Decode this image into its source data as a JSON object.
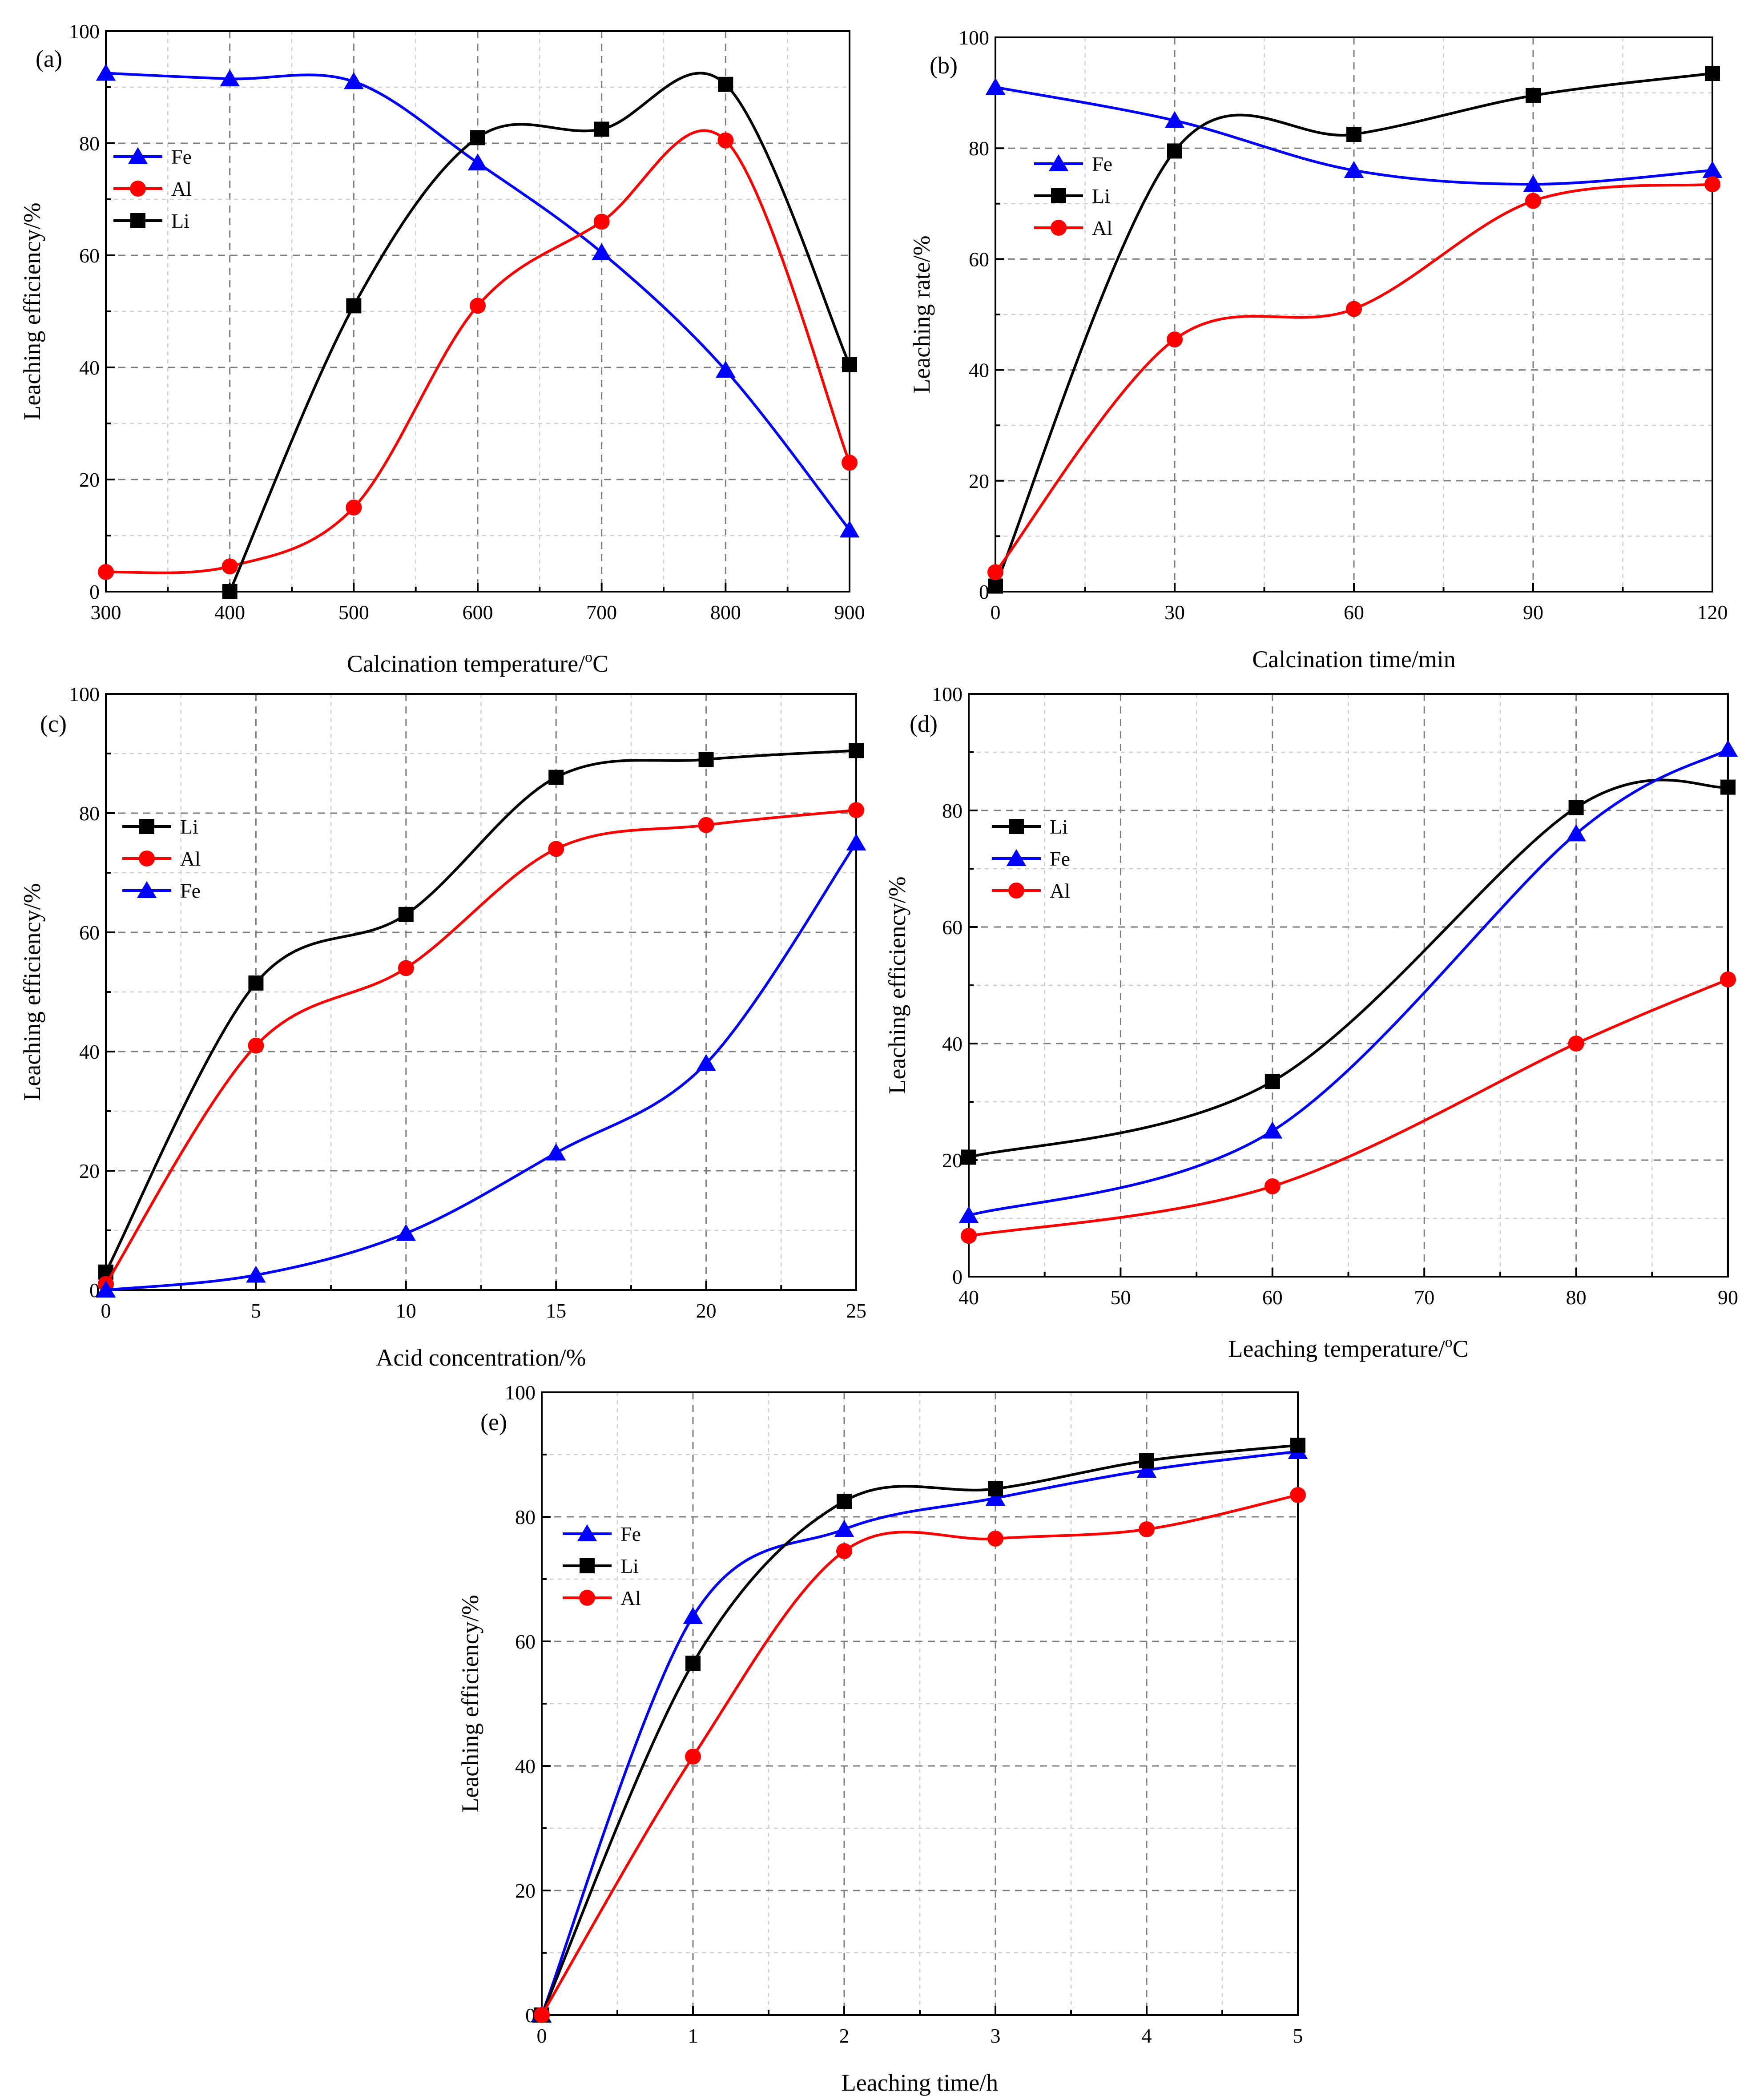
{
  "chart_data": [
    {
      "type": "line",
      "panel_label": "(a)",
      "xlabel": "Calcination temperature/",
      "xlabel_unit": "oC",
      "ylabel": "Leaching efficiency/%",
      "x": [
        300,
        400,
        500,
        600,
        700,
        800,
        900
      ],
      "xlim": [
        300,
        900
      ],
      "ylim": [
        0,
        100
      ],
      "xticks": [
        300,
        400,
        500,
        600,
        700,
        800,
        900
      ],
      "yticks": [
        0,
        20,
        40,
        60,
        80,
        100
      ],
      "legend_position": "upper-left",
      "grid": true,
      "series": [
        {
          "name": "Fe",
          "color": "#0000ff",
          "marker": "triangle",
          "x": [
            300,
            400,
            500,
            600,
            700,
            800,
            900
          ],
          "values": [
            92.5,
            91.5,
            91,
            76.5,
            60.5,
            39.5,
            11
          ]
        },
        {
          "name": "Al",
          "color": "#ff0000",
          "marker": "circle",
          "x": [
            300,
            400,
            500,
            600,
            700,
            800,
            900
          ],
          "values": [
            3.5,
            4.5,
            15,
            51,
            66,
            80.5,
            23
          ]
        },
        {
          "name": "Li",
          "color": "#000000",
          "marker": "square",
          "x": [
            400,
            500,
            600,
            700,
            800,
            900
          ],
          "values": [
            0,
            51,
            81,
            82.5,
            90.5,
            40.5
          ]
        }
      ]
    },
    {
      "type": "line",
      "panel_label": "(b)",
      "xlabel": "Calcination time/min",
      "ylabel": "Leaching rate/%",
      "x": [
        0,
        30,
        60,
        90,
        120
      ],
      "xlim": [
        0,
        120
      ],
      "ylim": [
        0,
        100
      ],
      "xticks": [
        0,
        30,
        60,
        90,
        120
      ],
      "yticks": [
        0,
        20,
        40,
        60,
        80,
        100
      ],
      "legend_position": "upper-left",
      "grid": true,
      "series": [
        {
          "name": "Fe",
          "color": "#0000ff",
          "marker": "triangle",
          "x": [
            0,
            30,
            60,
            90,
            120
          ],
          "values": [
            91,
            85,
            76,
            73.5,
            76
          ]
        },
        {
          "name": "Li",
          "color": "#000000",
          "marker": "square",
          "x": [
            0,
            30,
            60,
            90,
            120
          ],
          "values": [
            1,
            79.5,
            82.5,
            89.5,
            93.5
          ]
        },
        {
          "name": "Al",
          "color": "#ff0000",
          "marker": "circle",
          "x": [
            0,
            30,
            60,
            90,
            120
          ],
          "values": [
            3.5,
            45.5,
            51,
            70.5,
            73.5
          ]
        }
      ]
    },
    {
      "type": "line",
      "panel_label": "(c)",
      "xlabel": "Acid concentration/%",
      "ylabel": "Leaching efficiency/%",
      "x": [
        0,
        5,
        10,
        15,
        20,
        25
      ],
      "xlim": [
        0,
        25
      ],
      "ylim": [
        0,
        100
      ],
      "xticks": [
        0,
        5,
        10,
        15,
        20,
        25
      ],
      "yticks": [
        0,
        20,
        40,
        60,
        80,
        100
      ],
      "legend_position": "middle-left",
      "grid": true,
      "series": [
        {
          "name": "Li",
          "color": "#000000",
          "marker": "square",
          "x": [
            0,
            5,
            10,
            15,
            20,
            25
          ],
          "values": [
            3,
            51.5,
            63,
            86,
            89,
            90.5
          ]
        },
        {
          "name": "Al",
          "color": "#ff0000",
          "marker": "circle",
          "x": [
            0,
            5,
            10,
            15,
            20,
            25
          ],
          "values": [
            1,
            41,
            54,
            74,
            78,
            80.5
          ]
        },
        {
          "name": "Fe",
          "color": "#0000ff",
          "marker": "triangle",
          "x": [
            0,
            5,
            10,
            15,
            20,
            25
          ],
          "values": [
            0,
            2.5,
            9.5,
            23,
            38,
            75
          ]
        }
      ]
    },
    {
      "type": "line",
      "panel_label": "(d)",
      "xlabel": "Leaching  temperature/",
      "xlabel_unit": "oC",
      "ylabel": "Leaching efficiency/%",
      "x": [
        40,
        60,
        80,
        90
      ],
      "xlim": [
        40,
        90
      ],
      "ylim": [
        0,
        100
      ],
      "xticks": [
        40,
        50,
        60,
        70,
        80,
        90
      ],
      "yticks": [
        0,
        20,
        40,
        60,
        80,
        100
      ],
      "legend_position": "upper-left",
      "grid": true,
      "series": [
        {
          "name": "Li",
          "color": "#000000",
          "marker": "square",
          "x": [
            40,
            60,
            80,
            90
          ],
          "values": [
            20.5,
            33.5,
            80.5,
            84
          ]
        },
        {
          "name": "Fe",
          "color": "#0000ff",
          "marker": "triangle",
          "x": [
            40,
            60,
            80,
            90
          ],
          "values": [
            10.5,
            25,
            76,
            90.5
          ]
        },
        {
          "name": "Al",
          "color": "#ff0000",
          "marker": "circle",
          "x": [
            40,
            60,
            80,
            90
          ],
          "values": [
            7,
            15.5,
            40,
            51
          ]
        }
      ]
    },
    {
      "type": "line",
      "panel_label": "(e)",
      "xlabel": "Leaching time/h",
      "ylabel": "Leaching efficiency/%",
      "x": [
        0,
        1,
        2,
        3,
        4,
        5
      ],
      "xlim": [
        0,
        5
      ],
      "ylim": [
        0,
        100
      ],
      "xticks": [
        0,
        1,
        2,
        3,
        4,
        5
      ],
      "yticks": [
        0,
        20,
        40,
        60,
        80,
        100
      ],
      "legend_position": "upper-left",
      "grid": true,
      "series": [
        {
          "name": "Fe",
          "color": "#0000ff",
          "marker": "triangle",
          "x": [
            0,
            1,
            2,
            3,
            4,
            5
          ],
          "values": [
            0,
            64,
            78,
            83,
            87.5,
            90.5
          ]
        },
        {
          "name": "Li",
          "color": "#000000",
          "marker": "square",
          "x": [
            0,
            1,
            2,
            3,
            4,
            5
          ],
          "values": [
            0,
            56.5,
            82.5,
            84.5,
            89,
            91.5
          ]
        },
        {
          "name": "Al",
          "color": "#ff0000",
          "marker": "circle",
          "x": [
            0,
            1,
            2,
            3,
            4,
            5
          ],
          "values": [
            0,
            41.5,
            74.5,
            76.5,
            78,
            83.5
          ]
        }
      ]
    }
  ]
}
